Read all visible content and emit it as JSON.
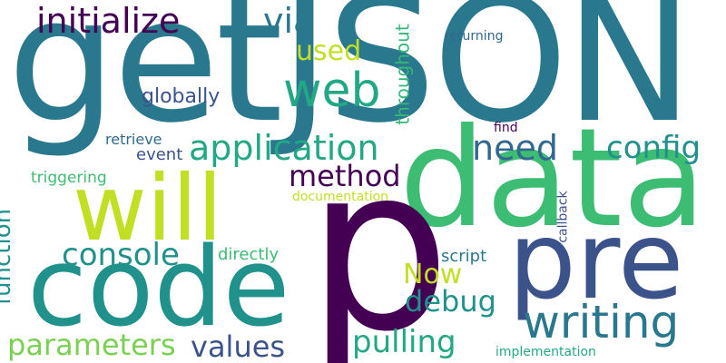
{
  "words": [
    {
      "text": "p",
      "color": "#440154"
    },
    {
      "text": "getJSON",
      "color": "#2a788e"
    },
    {
      "text": "data",
      "color": "#3dbc74"
    },
    {
      "text": "code",
      "color": "#21918c"
    },
    {
      "text": "will",
      "color": "#c2df23"
    },
    {
      "text": "pre",
      "color": "#3b528b"
    },
    {
      "text": "writing",
      "color": "#2a788e"
    },
    {
      "text": "web",
      "color": "#22a884"
    },
    {
      "text": "application",
      "color": "#22a884"
    },
    {
      "text": "initialize",
      "color": "#440154"
    },
    {
      "text": "via",
      "color": "#2a788e"
    },
    {
      "text": "used",
      "color": "#c2df23"
    },
    {
      "text": "method",
      "color": "#440154"
    },
    {
      "text": "need",
      "color": "#31688e"
    },
    {
      "text": "config",
      "color": "#21918c"
    },
    {
      "text": "console",
      "color": "#21918c"
    },
    {
      "text": "parameters",
      "color": "#7ad151"
    },
    {
      "text": "values",
      "color": "#3b528b"
    },
    {
      "text": "pulling",
      "color": "#22a884"
    },
    {
      "text": "debug",
      "color": "#21918c"
    },
    {
      "text": "Now",
      "color": "#c2df23"
    },
    {
      "text": "function",
      "color": "#21918c"
    },
    {
      "text": "throughout",
      "color": "#35b779"
    },
    {
      "text": "globally",
      "color": "#3b528b"
    },
    {
      "text": "retrieve",
      "color": "#31688e"
    },
    {
      "text": "event",
      "color": "#3b528b"
    },
    {
      "text": "triggering",
      "color": "#3dbc74"
    },
    {
      "text": "directly",
      "color": "#3dbc74"
    },
    {
      "text": "script",
      "color": "#2a788e"
    },
    {
      "text": "documentation",
      "color": "#c2df23"
    },
    {
      "text": "callback",
      "color": "#3b528b"
    },
    {
      "text": "find",
      "color": "#440154"
    },
    {
      "text": "returning",
      "color": "#31688e"
    },
    {
      "text": "implementation",
      "color": "#22a884"
    }
  ]
}
